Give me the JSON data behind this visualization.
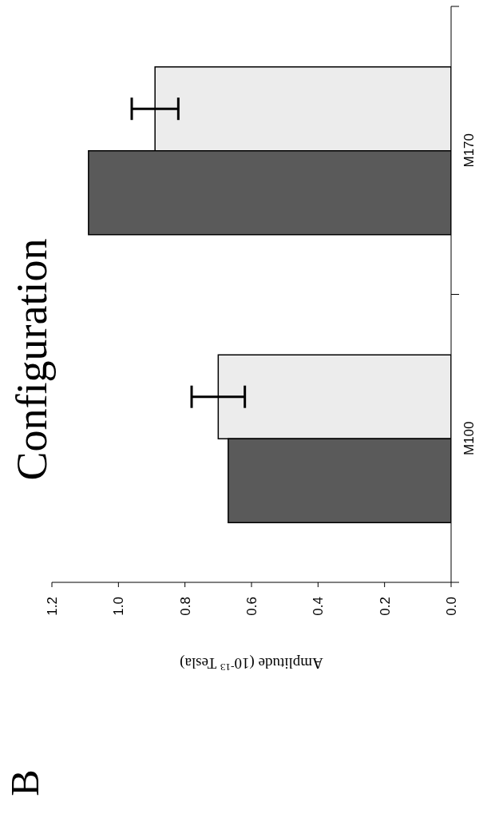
{
  "chart_data": {
    "type": "bar",
    "orientation": "horizontal",
    "title": "Configuration",
    "xlabel": "Amplitude (10$^{-13}$ Tesla)",
    "annotations": [
      "B"
    ],
    "categories": [
      "M170",
      "M100"
    ],
    "series": [
      {
        "color": "#ececec",
        "values": [
          0.89,
          0.7
        ],
        "errors": [
          0.07,
          0.08
        ]
      },
      {
        "color": "#5a5a5a",
        "values": [
          1.09,
          0.67
        ],
        "errors": [
          null,
          null
        ]
      }
    ],
    "xlim": [
      1.2,
      0
    ],
    "xticks": [
      {
        "value": 1.2,
        "label": "1.2"
      },
      {
        "value": 1,
        "label": "1.0"
      },
      {
        "value": 0.8,
        "label": "0.8"
      },
      {
        "value": 0.6,
        "label": "0.6"
      },
      {
        "value": 0.4,
        "label": "0.4"
      },
      {
        "value": 0.2,
        "label": "0.2"
      },
      {
        "value": 0,
        "label": "0.0"
      }
    ]
  }
}
